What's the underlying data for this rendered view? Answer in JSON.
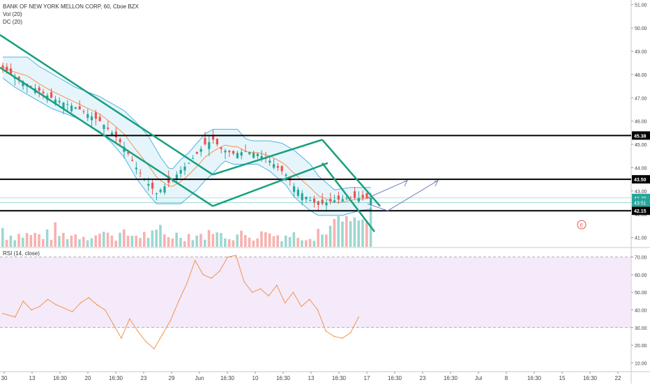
{
  "legend": {
    "title": "BANK OF NEW YORK MELLON CORP, 60, Cboe BZX",
    "vol": "Vol (20)",
    "dc": "DC (20)"
  },
  "rsi_legend": "RSI (14, close)",
  "earnings_marker": "E",
  "colors": {
    "up": "#26a69a",
    "down": "#ef5350",
    "trend": "#17a07e",
    "donchian": "#4fb3e0",
    "donchian_fill": "#d6eef8",
    "donchian_mid": "#f0954f",
    "rsi_line": "#f0954f",
    "rsi_band": "#ecdcf7",
    "projection": "#6f7fc0",
    "price_tag": "#26a69a"
  },
  "chart_data": [
    {
      "type": "line",
      "title": "BANK OF NEW YORK MELLON CORP, 60, Cboe BZX",
      "price_axis": {
        "ticks": [
          "51.00",
          "50.00",
          "49.00",
          "48.00",
          "47.00",
          "46.00",
          "45.00",
          "44.00",
          "43.00",
          "42.00",
          "41.00"
        ],
        "ylim": [
          40.6,
          51.2
        ]
      },
      "time_axis": {
        "ticks": [
          "30",
          "13",
          "16:30",
          "20",
          "16:30",
          "23",
          "29",
          "Jun",
          "16:30",
          "10",
          "16:30",
          "13",
          "16:30",
          "17",
          "16:30",
          "23",
          "16:30",
          "Jul",
          "8",
          "16:30",
          "15",
          "16:30",
          "22"
        ]
      },
      "price_path": {
        "x": [
          0,
          3,
          6,
          9,
          12,
          15,
          18,
          21,
          24,
          27,
          30,
          33,
          36,
          38,
          40,
          42,
          44,
          46,
          48,
          50,
          52,
          54,
          57,
          60,
          63,
          66,
          68,
          70,
          72,
          74,
          76,
          78,
          80,
          82,
          84,
          86,
          88,
          90
        ],
        "close": [
          48.3,
          47.9,
          47.6,
          47.3,
          47.0,
          46.8,
          46.6,
          46.3,
          46.0,
          45.5,
          44.9,
          44.0,
          43.3,
          42.9,
          43.2,
          43.5,
          43.9,
          44.2,
          44.6,
          45.0,
          45.2,
          44.8,
          44.6,
          44.7,
          44.6,
          44.3,
          44.0,
          43.7,
          43.2,
          42.9,
          42.6,
          42.4,
          42.5,
          42.6,
          42.65,
          42.7,
          42.7,
          42.7
        ]
      },
      "horizontal_levels": [
        {
          "label": "45.38",
          "value": 45.38
        },
        {
          "label": "43.50",
          "value": 43.5
        },
        {
          "label": "42.15",
          "value": 42.15
        }
      ],
      "price_tags": [
        {
          "label": "42.70",
          "value": 42.7
        },
        {
          "label": "43:51",
          "value": 42.5
        }
      ],
      "annotation": "E"
    },
    {
      "type": "line",
      "title": "RSI (14, close)",
      "ylim": [
        5,
        75
      ],
      "ticks": [
        "70.00",
        "60.00",
        "50.00",
        "40.00",
        "30.00",
        "20.00",
        "10.00"
      ],
      "band": [
        30,
        70
      ],
      "x": [
        0,
        3,
        5,
        7,
        9,
        11,
        13,
        15,
        17,
        19,
        21,
        23,
        25,
        27,
        29,
        31,
        33,
        35,
        37,
        39,
        41,
        43,
        45,
        47,
        49,
        51,
        53,
        55,
        57,
        59,
        61,
        63,
        65,
        67,
        69,
        71,
        73,
        75,
        77,
        79,
        81,
        83,
        85,
        87
      ],
      "values": [
        38,
        36,
        45,
        40,
        42,
        46,
        43,
        41,
        39,
        44,
        47,
        43,
        40,
        32,
        24,
        35,
        28,
        22,
        18,
        26,
        34,
        45,
        55,
        68,
        60,
        58,
        62,
        70,
        71,
        56,
        50,
        52,
        48,
        54,
        44,
        50,
        42,
        46,
        40,
        28,
        25,
        24,
        27,
        36
      ]
    }
  ]
}
